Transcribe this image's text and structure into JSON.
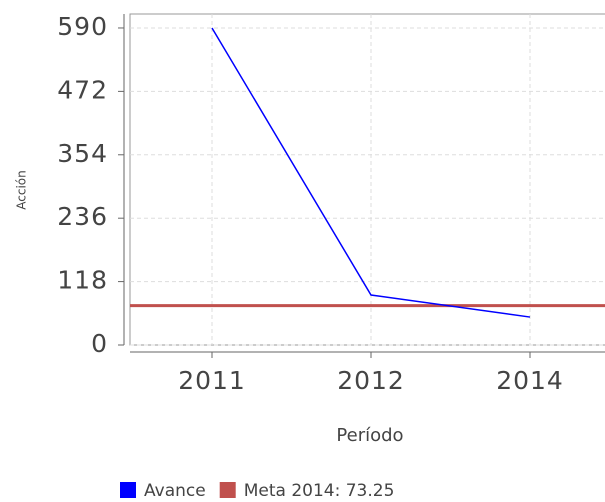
{
  "chart_data": {
    "type": "line",
    "y_label": "Acción",
    "x_label": "Período",
    "categories": [
      "2011",
      "2012",
      "2014"
    ],
    "series": [
      {
        "name": "Avance",
        "color": "#0000ff",
        "values": [
          590,
          93,
          52
        ]
      }
    ],
    "reference_lines": [
      {
        "name": "Meta 2014: 73.25",
        "color": "#c0504d",
        "value": 73.25
      }
    ],
    "ylim": [
      0,
      616
    ],
    "yticks": [
      0,
      118,
      236,
      354,
      472,
      590
    ],
    "grid": true
  }
}
